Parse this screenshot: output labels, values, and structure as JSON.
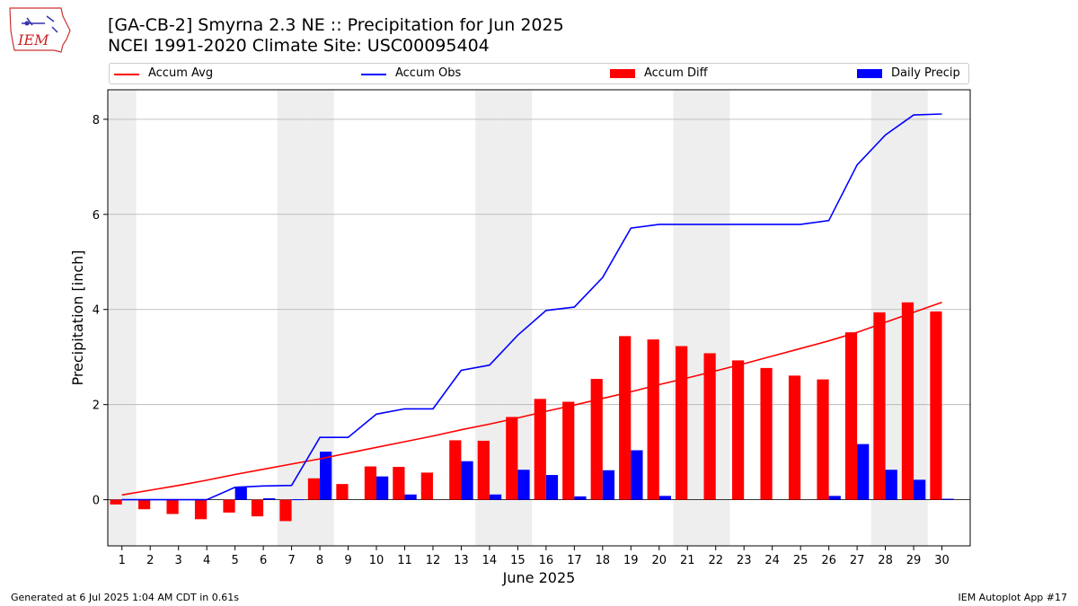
{
  "header": {
    "title_line1": "[GA-CB-2] Smyrna 2.3 NE :: Precipitation for Jun 2025",
    "title_line2": "NCEI 1991-2020 Climate Site: USC00095404",
    "logo_text": "IEM"
  },
  "footer": {
    "generated": "Generated at 6 Jul 2025 1:04 AM CDT in 0.61s",
    "app": "IEM Autoplot App #17"
  },
  "colors": {
    "accum_avg": "#ff0000",
    "accum_obs": "#0000ff",
    "accum_diff": "#ff0000",
    "daily_precip": "#0000ff",
    "weekend_shade": "#eeeeee",
    "grid": "#b0b0b0"
  },
  "chart_data": {
    "type": "bar",
    "xlabel": "June 2025",
    "ylabel": "Precipitation [inch]",
    "ylim": [
      -0.97,
      8.62
    ],
    "yticks": [
      0,
      2,
      4,
      6,
      8
    ],
    "grid": "horizontal",
    "legend_placement": "top",
    "legend": [
      "Accum Avg",
      "Accum Obs",
      "Accum Diff",
      "Daily Precip"
    ],
    "weekend_days": [
      1,
      7,
      8,
      14,
      15,
      21,
      22,
      28,
      29
    ],
    "x": [
      1,
      2,
      3,
      4,
      5,
      6,
      7,
      8,
      9,
      10,
      11,
      12,
      13,
      14,
      15,
      16,
      17,
      18,
      19,
      20,
      21,
      22,
      23,
      24,
      25,
      26,
      27,
      28,
      29,
      30
    ],
    "series": [
      {
        "name": "Accum Avg",
        "kind": "line",
        "values": [
          0.1,
          0.2,
          0.3,
          0.41,
          0.53,
          0.64,
          0.75,
          0.86,
          0.98,
          1.1,
          1.22,
          1.34,
          1.47,
          1.59,
          1.72,
          1.86,
          1.99,
          2.13,
          2.27,
          2.42,
          2.56,
          2.71,
          2.86,
          3.02,
          3.18,
          3.34,
          3.52,
          3.73,
          3.94,
          4.15
        ]
      },
      {
        "name": "Accum Obs",
        "kind": "line",
        "values": [
          0.0,
          0.0,
          0.0,
          0.0,
          0.26,
          0.29,
          0.3,
          1.31,
          1.31,
          1.8,
          1.91,
          1.91,
          2.72,
          2.83,
          3.46,
          3.98,
          4.05,
          4.67,
          5.71,
          5.79,
          5.79,
          5.79,
          5.79,
          5.79,
          5.79,
          5.87,
          7.04,
          7.67,
          8.09,
          8.11
        ]
      },
      {
        "name": "Accum Diff",
        "kind": "bar",
        "values": [
          -0.1,
          -0.2,
          -0.3,
          -0.41,
          -0.27,
          -0.35,
          -0.45,
          0.45,
          0.33,
          0.7,
          0.69,
          0.57,
          1.25,
          1.24,
          1.74,
          2.12,
          2.06,
          2.54,
          3.44,
          3.37,
          3.23,
          3.08,
          2.93,
          2.77,
          2.61,
          2.53,
          3.52,
          3.94,
          4.15,
          3.96
        ]
      },
      {
        "name": "Daily Precip",
        "kind": "bar",
        "values": [
          0.0,
          0.0,
          0.0,
          0.0,
          0.26,
          0.03,
          0.01,
          1.01,
          0.0,
          0.49,
          0.11,
          0.0,
          0.81,
          0.11,
          0.63,
          0.52,
          0.07,
          0.62,
          1.04,
          0.08,
          0.0,
          0.0,
          0.0,
          0.0,
          0.0,
          0.08,
          1.17,
          0.63,
          0.42,
          0.02
        ]
      }
    ]
  }
}
